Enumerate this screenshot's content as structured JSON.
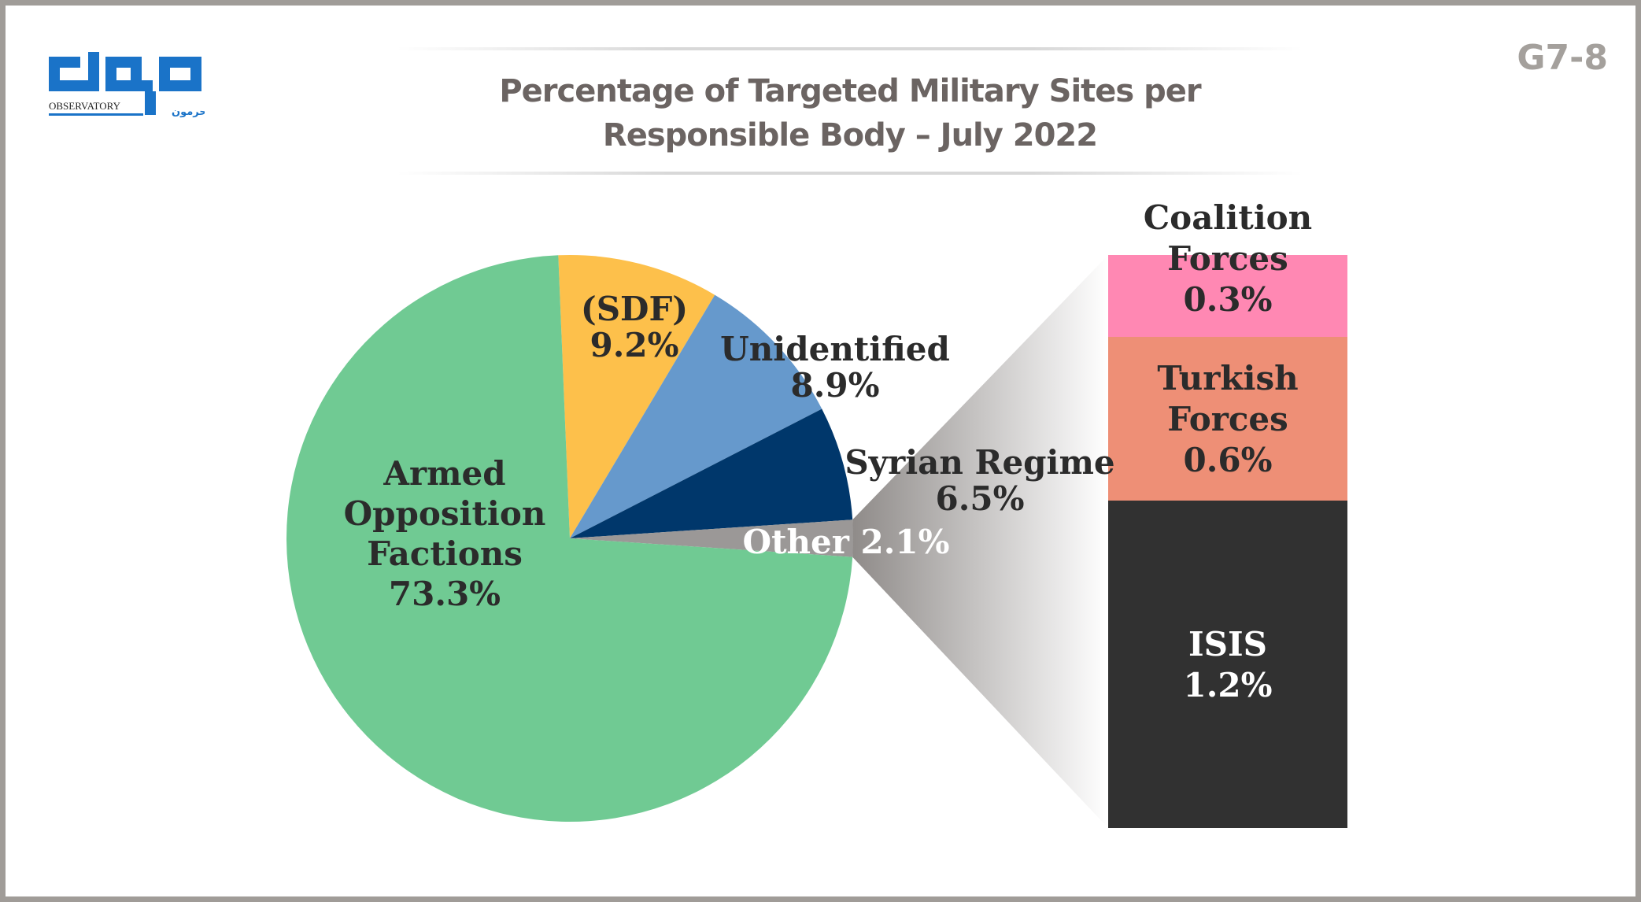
{
  "header": {
    "title_line1": "Percentage of Targeted Military Sites per",
    "title_line2": "Responsible Body – July 2022",
    "code": "G7-8"
  },
  "logo": {
    "latin_text": "OBSERVATORY",
    "arabic_text": "حرمون",
    "brand_color": "#1a73c8"
  },
  "chart_data": {
    "type": "pie",
    "title": "Percentage of Targeted Military Sites per Responsible Body – July 2022",
    "unit": "%",
    "pie": [
      {
        "label_lines": [
          "(SDF)"
        ],
        "value": 9.2,
        "value_text": "9.2%",
        "color": "#fdc04b"
      },
      {
        "label_lines": [
          "Unidentified"
        ],
        "value": 8.9,
        "value_text": "8.9%",
        "color": "#6699cc"
      },
      {
        "label_lines": [
          "Syrian Regime"
        ],
        "value": 6.5,
        "value_text": "6.5%",
        "color": "#00376b"
      },
      {
        "label_lines": [
          "Other"
        ],
        "value": 2.1,
        "value_text": "2.1%",
        "color": "#9b9897"
      },
      {
        "label_lines": [
          "Armed",
          "Opposition",
          "Factions"
        ],
        "value": 73.3,
        "value_text": "73.3%",
        "color": "#70ca93"
      }
    ],
    "breakdown_of": "Other",
    "bar": [
      {
        "label_lines": [
          "Coalition",
          "Forces"
        ],
        "value": 0.3,
        "value_text": "0.3%",
        "color": "#ff88b3"
      },
      {
        "label_lines": [
          "Turkish",
          "Forces"
        ],
        "value": 0.6,
        "value_text": "0.6%",
        "color": "#ee8f76"
      },
      {
        "label_lines": [
          "ISIS"
        ],
        "value": 1.2,
        "value_text": "1.2%",
        "color": "#313131"
      }
    ]
  }
}
